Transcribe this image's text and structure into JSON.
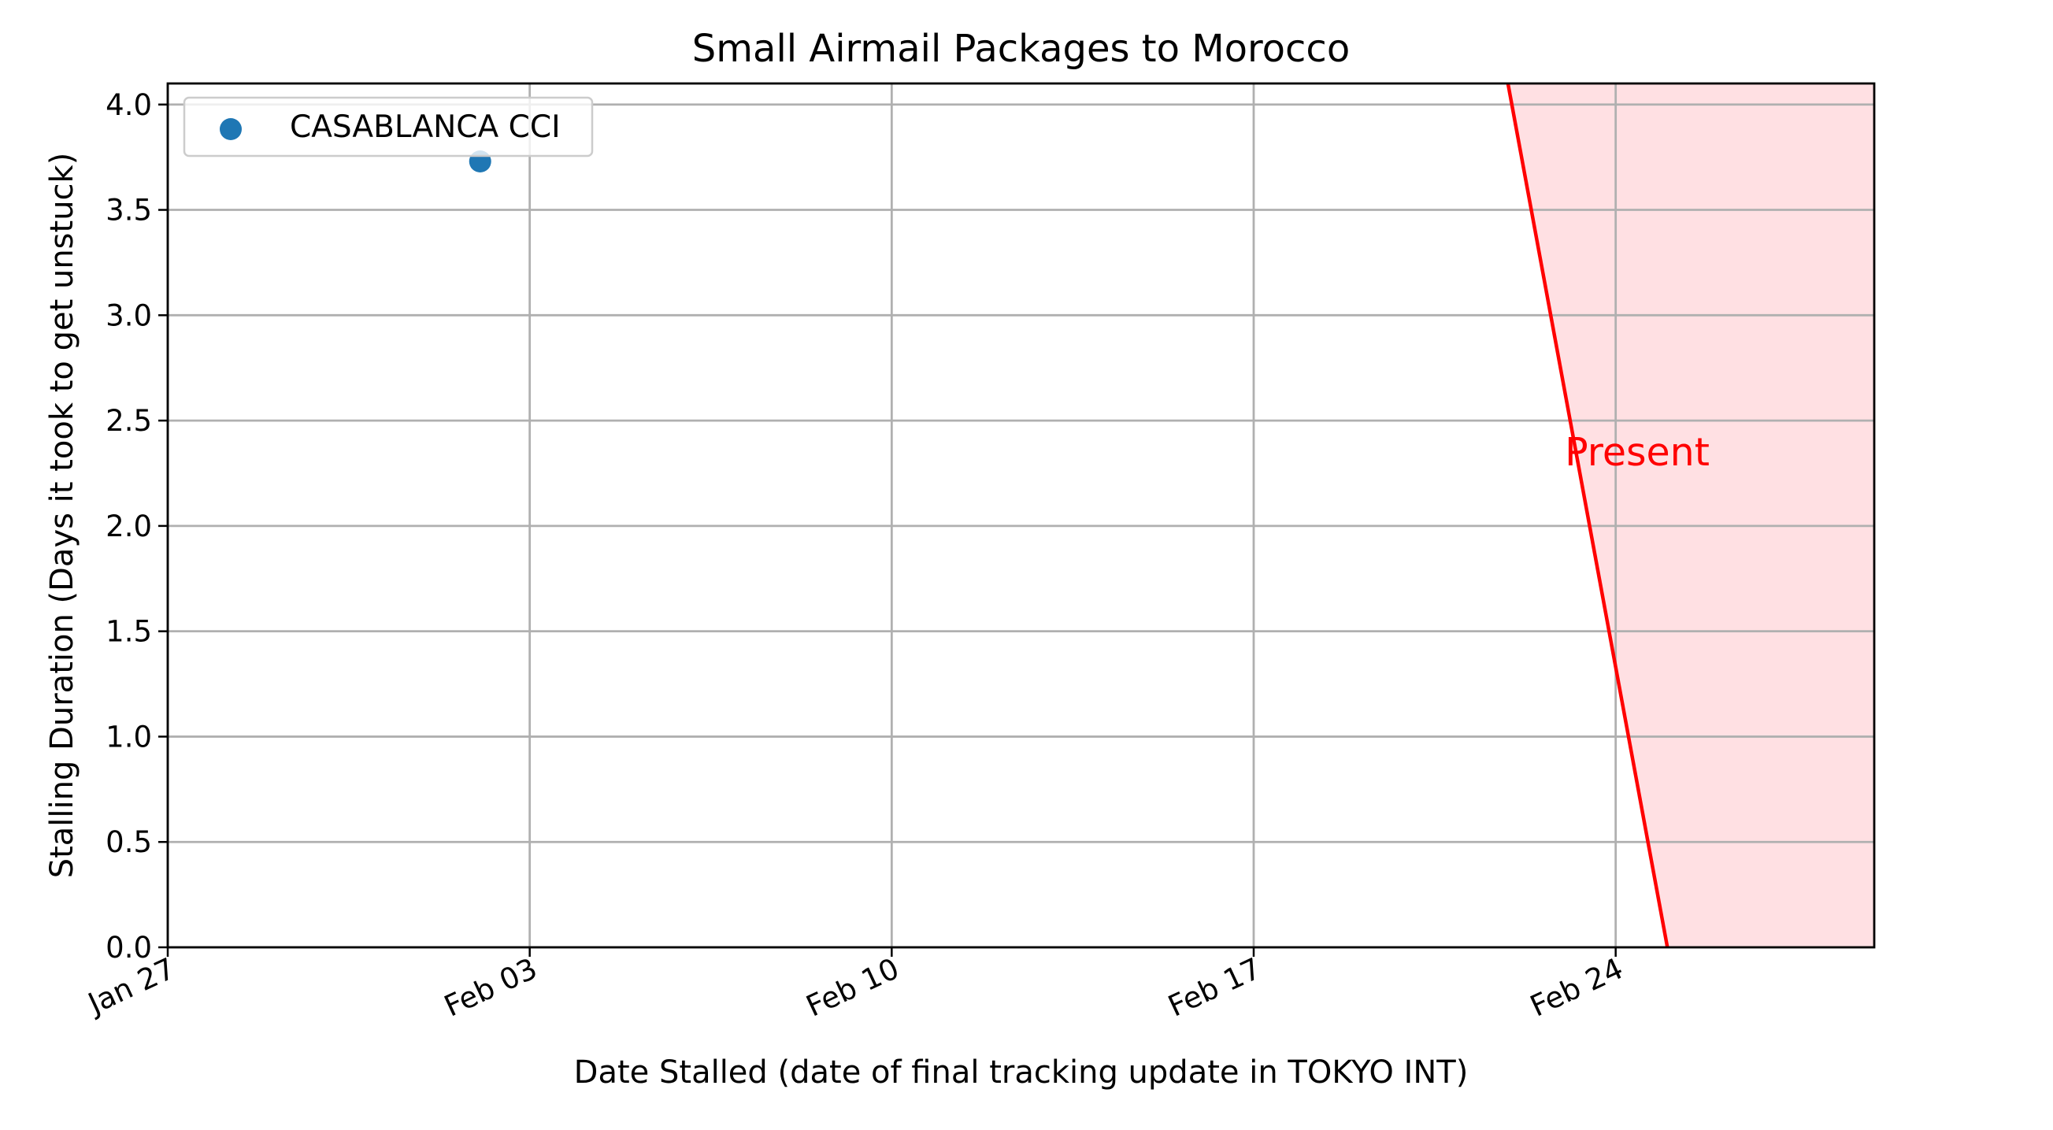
{
  "chart_data": {
    "type": "scatter",
    "title": "Small Airmail Packages to Morocco",
    "xlabel": "Date Stalled (date of final tracking update in TOKYO INT)",
    "ylabel": "Stalling Duration (Days it took to get unstuck)",
    "x_type": "date",
    "xlim": [
      "2025-01-27",
      "2025-03-01"
    ],
    "ylim": [
      0,
      4.1
    ],
    "x_ticks": [
      {
        "value": "2025-01-27",
        "label": "Jan 27"
      },
      {
        "value": "2025-02-03",
        "label": "Feb 03"
      },
      {
        "value": "2025-02-10",
        "label": "Feb 10"
      },
      {
        "value": "2025-02-17",
        "label": "Feb 17"
      },
      {
        "value": "2025-02-24",
        "label": "Feb 24"
      }
    ],
    "y_ticks": [
      {
        "value": 0.0,
        "label": "0.0"
      },
      {
        "value": 0.5,
        "label": "0.5"
      },
      {
        "value": 1.0,
        "label": "1.0"
      },
      {
        "value": 1.5,
        "label": "1.5"
      },
      {
        "value": 2.0,
        "label": "2.0"
      },
      {
        "value": 2.5,
        "label": "2.5"
      },
      {
        "value": 3.0,
        "label": "3.0"
      },
      {
        "value": 3.5,
        "label": "3.5"
      },
      {
        "value": 4.0,
        "label": "4.0"
      }
    ],
    "grid": true,
    "legend_position": "upper-left",
    "series": [
      {
        "name": "CASABLANCA CCI",
        "color": "#1f77b4",
        "points": [
          {
            "x": "2025-02-02T01:00",
            "y": 3.73
          }
        ]
      }
    ],
    "present_line": {
      "label": "Present",
      "color": "#ff0000",
      "fill_color": "#ffe0e3",
      "points": [
        {
          "x": "2025-02-21T22:00",
          "y": 4.1
        },
        {
          "x": "2025-02-25T00:00",
          "y": 0.0
        }
      ],
      "label_position": {
        "x": "2025-02-24T10:00",
        "y": 2.35
      }
    }
  }
}
